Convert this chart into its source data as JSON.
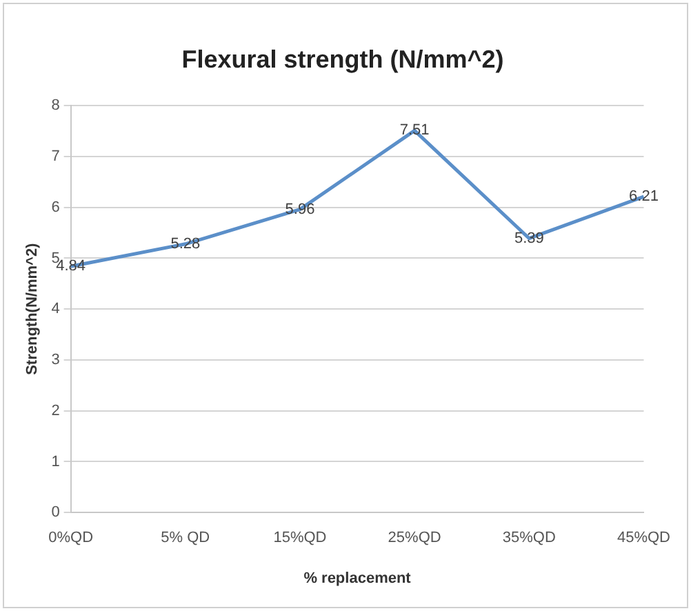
{
  "chart_data": {
    "type": "line",
    "title": "Flexural strength (N/mm^2)",
    "xlabel": "% replacement",
    "ylabel": "Strength(N/mm^2)",
    "categories": [
      "0%QD",
      "5% QD",
      "15%QD",
      "25%QD",
      "35%QD",
      "45%QD"
    ],
    "series": [
      {
        "color": "#5b8fc9",
        "values": [
          4.84,
          5.28,
          5.96,
          7.51,
          5.39,
          6.21
        ]
      }
    ],
    "ylim": [
      0,
      8
    ],
    "yticks": [
      0,
      1,
      2,
      3,
      4,
      5,
      6,
      7,
      8
    ],
    "grid": "y",
    "legend": false,
    "marker": "none",
    "line_style": "solid",
    "data_labels": true
  }
}
